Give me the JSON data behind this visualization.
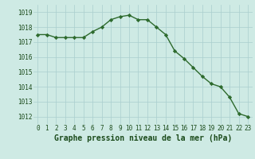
{
  "x": [
    0,
    1,
    2,
    3,
    4,
    5,
    6,
    7,
    8,
    9,
    10,
    11,
    12,
    13,
    14,
    15,
    16,
    17,
    18,
    19,
    20,
    21,
    22,
    23
  ],
  "y": [
    1017.5,
    1017.5,
    1017.3,
    1017.3,
    1017.3,
    1017.3,
    1017.7,
    1018.0,
    1018.5,
    1018.7,
    1018.8,
    1018.5,
    1018.5,
    1018.0,
    1017.5,
    1016.4,
    1015.9,
    1015.3,
    1014.7,
    1014.2,
    1014.0,
    1013.3,
    1012.2,
    1012.0
  ],
  "line_color": "#2d6a2d",
  "marker": "D",
  "marker_size": 2.2,
  "bg_color": "#ceeae4",
  "grid_color": "#aacece",
  "xlabel": "Graphe pression niveau de la mer (hPa)",
  "xlabel_color": "#1a4a1a",
  "ylabel_ticks": [
    1012,
    1013,
    1014,
    1015,
    1016,
    1017,
    1018,
    1019
  ],
  "xtick_labels": [
    "0",
    "1",
    "2",
    "3",
    "4",
    "5",
    "6",
    "7",
    "8",
    "9",
    "10",
    "11",
    "12",
    "13",
    "14",
    "15",
    "16",
    "17",
    "18",
    "19",
    "20",
    "21",
    "22",
    "23"
  ],
  "ylim": [
    1011.5,
    1019.5
  ],
  "xlim": [
    -0.5,
    23.5
  ],
  "tick_fontsize": 5.5,
  "xlabel_fontsize": 7.0,
  "linewidth": 1.0
}
